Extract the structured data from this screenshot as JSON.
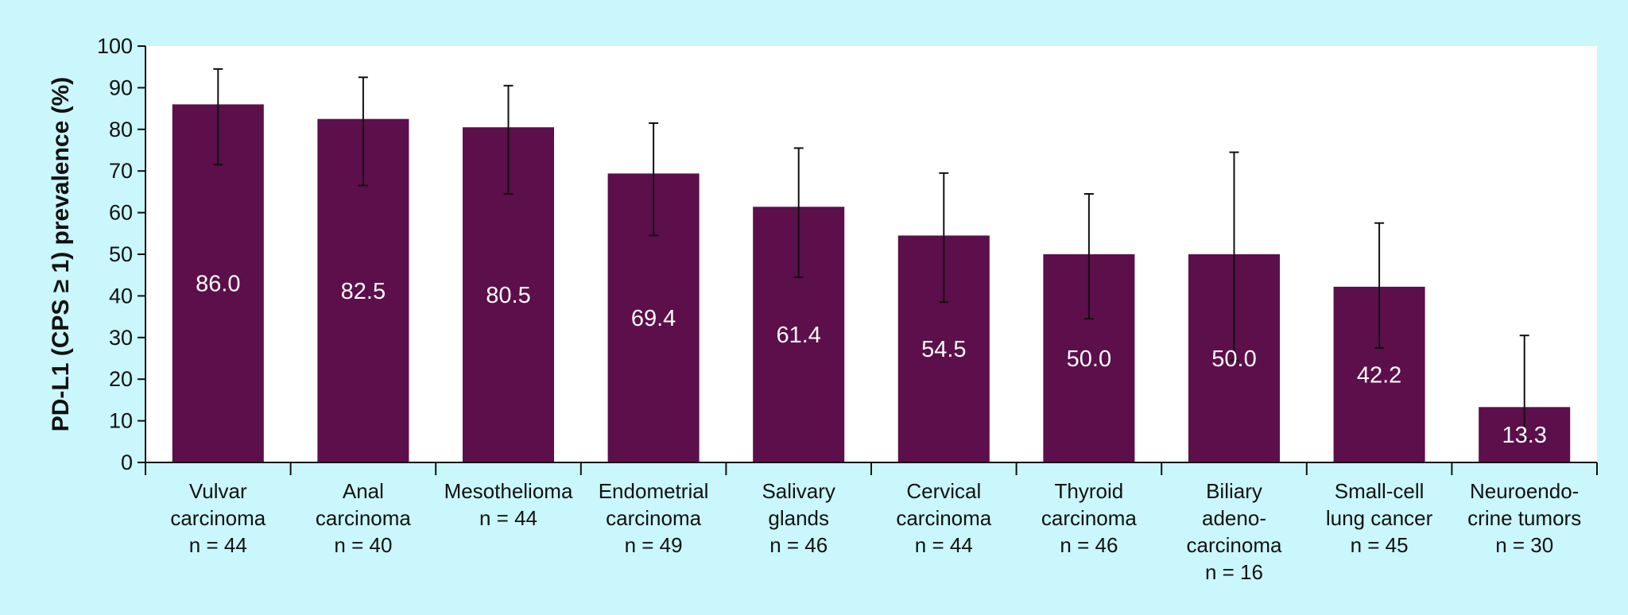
{
  "chart_data": {
    "type": "bar",
    "title": "",
    "xlabel": "",
    "ylabel": "PD-L1 (CPS ≥ 1) prevalence (%)",
    "ylim": [
      0,
      100
    ],
    "yticks": [
      0,
      10,
      20,
      30,
      40,
      50,
      60,
      70,
      80,
      90,
      100
    ],
    "grid": false,
    "bar_color": "#5c0f4a",
    "plot_background": "#ffffff",
    "page_background": "#c9f7fb",
    "categories": [
      [
        "Vulvar",
        "carcinoma",
        "n = 44"
      ],
      [
        "Anal",
        "carcinoma",
        "n = 40"
      ],
      [
        "Mesothelioma",
        "n = 44"
      ],
      [
        "Endometrial",
        "carcinoma",
        "n = 49"
      ],
      [
        "Salivary",
        "glands",
        "n = 46"
      ],
      [
        "Cervical",
        "carcinoma",
        "n = 44"
      ],
      [
        "Thyroid",
        "carcinoma",
        "n = 46"
      ],
      [
        "Biliary",
        "adeno-",
        "carcinoma",
        "n = 16"
      ],
      [
        "Small-cell",
        "lung cancer",
        "n = 45"
      ],
      [
        "Neuroendo-",
        "crine tumors",
        "n = 30"
      ]
    ],
    "values": [
      86.0,
      82.5,
      80.5,
      69.4,
      61.4,
      54.5,
      50.0,
      50.0,
      42.2,
      13.3
    ],
    "value_labels": [
      "86.0",
      "82.5",
      "80.5",
      "69.4",
      "61.4",
      "54.5",
      "50.0",
      "50.0",
      "42.2",
      "13.3"
    ],
    "error_bars": [
      {
        "low": 71.5,
        "high": 94.5
      },
      {
        "low": 66.5,
        "high": 92.5
      },
      {
        "low": 64.5,
        "high": 90.5
      },
      {
        "low": 54.5,
        "high": 81.5
      },
      {
        "low": 44.5,
        "high": 75.5
      },
      {
        "low": 38.5,
        "high": 69.5
      },
      {
        "low": 34.5,
        "high": 64.5
      },
      {
        "low": 24.5,
        "high": 74.5
      },
      {
        "low": 27.5,
        "high": 57.5
      },
      {
        "low": 5.5,
        "high": 30.5
      }
    ]
  }
}
